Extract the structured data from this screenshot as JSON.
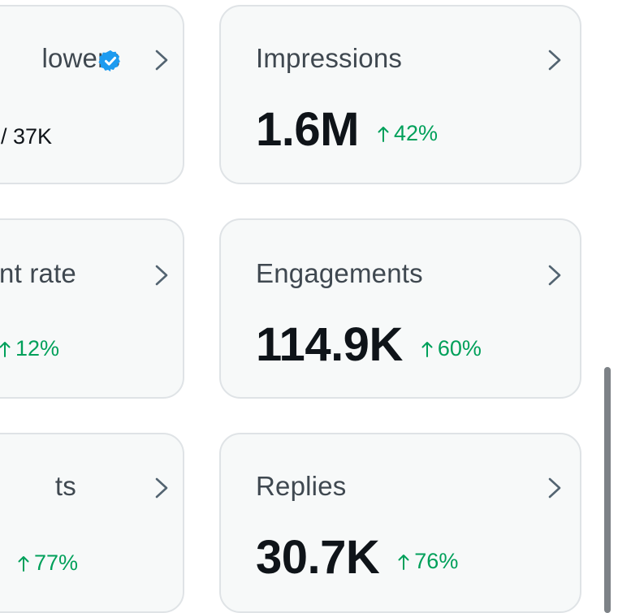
{
  "cards": [
    {
      "title": "lowers",
      "partial_value": "/ 37K",
      "verified": true,
      "icon": "verified-badge-icon"
    },
    {
      "title": "Impressions",
      "value": "1.6M",
      "delta": "42%",
      "delta_direction": "up"
    },
    {
      "title": "nt rate",
      "partial_delta": "12%",
      "delta_direction": "up"
    },
    {
      "title": "Engagements",
      "value": "114.9K",
      "delta": "60%",
      "delta_direction": "up"
    },
    {
      "title": "ts",
      "partial_delta": "77%",
      "delta_direction": "up"
    },
    {
      "title": "Replies",
      "value": "30.7K",
      "delta": "76%",
      "delta_direction": "up"
    }
  ],
  "colors": {
    "card_bg": "#f7f9f9",
    "card_border": "#dfe3e6",
    "positive": "#00a05a",
    "verified": "#1d9bf0",
    "title": "#3f4850",
    "value": "#0f1419"
  }
}
